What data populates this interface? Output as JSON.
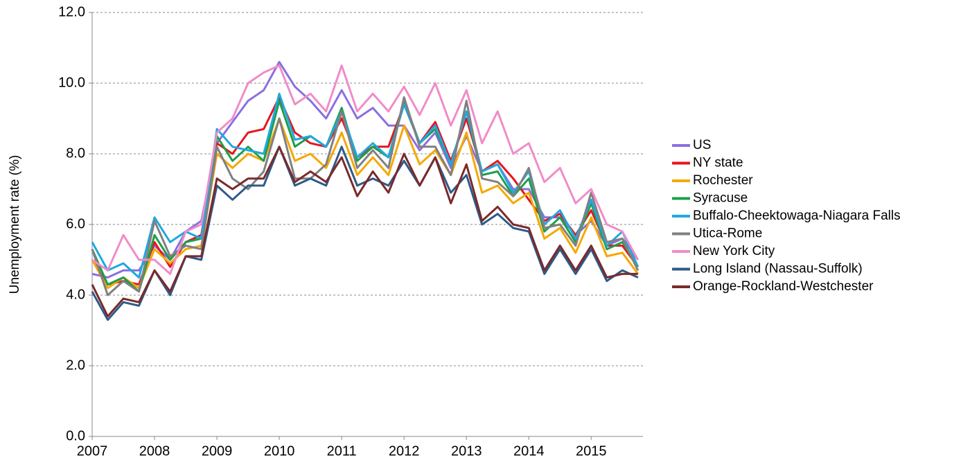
{
  "chart_data": {
    "type": "line",
    "y_label": "Unemployment rate (%)",
    "x": [
      2007,
      2007.25,
      2007.5,
      2007.75,
      2008,
      2008.25,
      2008.5,
      2008.75,
      2009,
      2009.25,
      2009.5,
      2009.75,
      2010,
      2010.25,
      2010.5,
      2010.75,
      2011,
      2011.25,
      2011.5,
      2011.75,
      2012,
      2012.25,
      2012.5,
      2012.75,
      2013,
      2013.25,
      2013.5,
      2013.75,
      2014,
      2014.25,
      2014.5,
      2014.75,
      2015,
      2015.25,
      2015.5,
      2015.75
    ],
    "xlim": [
      2007,
      2015.83
    ],
    "xticks": [
      2007,
      2008,
      2009,
      2010,
      2011,
      2012,
      2013,
      2014,
      2015
    ],
    "ylim": [
      0,
      12
    ],
    "yticks": [
      {
        "value": 0,
        "label": "0.0"
      },
      {
        "value": 2,
        "label": "2.0"
      },
      {
        "value": 4,
        "label": "4.0"
      },
      {
        "value": 6,
        "label": "6.0"
      },
      {
        "value": 8,
        "label": "8.0"
      },
      {
        "value": 10,
        "label": "10.0"
      },
      {
        "value": 12,
        "label": "12.0"
      }
    ],
    "grid": true,
    "legend": "right",
    "series": [
      {
        "name": "US",
        "color": "#8b6fe0",
        "values": [
          4.6,
          4.5,
          4.7,
          4.7,
          5.4,
          5.0,
          5.8,
          6.1,
          8.3,
          8.9,
          9.5,
          9.8,
          10.6,
          9.9,
          9.5,
          9.0,
          9.8,
          9.0,
          9.3,
          8.8,
          8.8,
          8.1,
          8.6,
          7.6,
          8.5,
          7.5,
          7.7,
          7.0,
          7.0,
          6.2,
          6.2,
          5.7,
          6.1,
          5.4,
          5.6,
          5.0
        ]
      },
      {
        "name": "NY state",
        "color": "#e8141e",
        "values": [
          5.0,
          4.3,
          4.4,
          4.3,
          5.5,
          4.8,
          5.5,
          5.7,
          8.3,
          8.0,
          8.6,
          8.7,
          9.6,
          8.6,
          8.3,
          8.2,
          9.0,
          7.9,
          8.2,
          8.2,
          9.4,
          8.3,
          8.9,
          7.8,
          9.0,
          7.5,
          7.8,
          7.3,
          6.7,
          6.1,
          6.3,
          5.7,
          6.4,
          5.4,
          5.4,
          4.8
        ]
      },
      {
        "name": "Rochester",
        "color": "#f5a800",
        "values": [
          5.0,
          4.2,
          4.5,
          4.2,
          5.3,
          4.9,
          5.3,
          5.4,
          8.0,
          7.6,
          8.0,
          7.8,
          9.0,
          7.8,
          8.0,
          7.6,
          8.6,
          7.4,
          7.9,
          7.4,
          8.8,
          7.7,
          8.1,
          7.4,
          8.6,
          6.9,
          7.1,
          6.6,
          6.9,
          5.6,
          5.9,
          5.2,
          6.2,
          5.1,
          5.2,
          4.6
        ]
      },
      {
        "name": "Syracuse",
        "color": "#1e9e4a",
        "values": [
          5.3,
          4.3,
          4.5,
          4.1,
          5.7,
          5.0,
          5.5,
          5.6,
          8.5,
          7.8,
          8.2,
          7.8,
          9.5,
          8.2,
          8.5,
          8.2,
          9.3,
          7.8,
          8.2,
          7.9,
          9.5,
          8.3,
          8.7,
          7.7,
          9.2,
          7.4,
          7.5,
          6.8,
          7.3,
          5.8,
          6.2,
          5.5,
          6.6,
          5.3,
          5.5,
          4.8
        ]
      },
      {
        "name": "Buffalo-Cheektowaga-Niagara Falls",
        "color": "#1fa8e0",
        "values": [
          5.5,
          4.7,
          4.9,
          4.5,
          6.2,
          5.5,
          5.8,
          5.6,
          8.7,
          8.2,
          8.1,
          8.0,
          9.7,
          8.4,
          8.5,
          8.2,
          9.2,
          7.9,
          8.3,
          7.9,
          9.4,
          8.3,
          8.8,
          7.7,
          9.2,
          7.5,
          7.7,
          6.9,
          7.5,
          6.0,
          6.4,
          5.6,
          6.7,
          5.4,
          5.8,
          4.8
        ]
      },
      {
        "name": "Utica-Rome",
        "color": "#808080",
        "values": [
          5.3,
          4.0,
          4.4,
          4.1,
          6.1,
          5.1,
          5.4,
          5.3,
          8.2,
          7.3,
          7.0,
          7.5,
          9.0,
          7.3,
          7.3,
          7.7,
          9.2,
          7.6,
          8.1,
          7.6,
          9.6,
          8.2,
          8.2,
          7.4,
          9.5,
          7.3,
          7.2,
          6.8,
          7.6,
          5.9,
          6.0,
          5.4,
          6.9,
          5.5,
          5.6,
          4.7
        ]
      },
      {
        "name": "New York City",
        "color": "#f08cc8",
        "values": [
          5.0,
          4.7,
          5.7,
          5.0,
          5.0,
          4.6,
          5.8,
          6.0,
          8.6,
          9.0,
          10.0,
          10.3,
          10.5,
          9.4,
          9.7,
          9.2,
          10.5,
          9.2,
          9.7,
          9.2,
          9.9,
          9.1,
          10.0,
          8.8,
          9.8,
          8.3,
          9.2,
          8.0,
          8.3,
          7.2,
          7.6,
          6.6,
          7.0,
          6.0,
          5.8,
          5.0
        ]
      },
      {
        "name": "Long Island (Nassau-Suffolk)",
        "color": "#2e5a88",
        "values": [
          4.1,
          3.3,
          3.8,
          3.7,
          4.7,
          4.0,
          5.1,
          5.0,
          7.1,
          6.7,
          7.1,
          7.1,
          8.2,
          7.1,
          7.3,
          7.1,
          8.2,
          7.1,
          7.3,
          7.1,
          7.8,
          7.1,
          7.9,
          6.9,
          7.4,
          6.0,
          6.3,
          5.9,
          5.8,
          4.6,
          5.3,
          4.6,
          5.3,
          4.4,
          4.7,
          4.5
        ]
      },
      {
        "name": "Orange-Rockland-Westchester",
        "color": "#7a2a2a",
        "values": [
          4.3,
          3.4,
          3.9,
          3.8,
          4.7,
          4.1,
          5.1,
          5.1,
          7.3,
          7.0,
          7.3,
          7.3,
          8.2,
          7.2,
          7.5,
          7.2,
          7.9,
          6.8,
          7.5,
          6.9,
          8.0,
          7.1,
          7.9,
          6.6,
          7.7,
          6.1,
          6.5,
          6.0,
          5.9,
          4.7,
          5.4,
          4.7,
          5.4,
          4.5,
          4.6,
          4.6
        ]
      }
    ]
  }
}
